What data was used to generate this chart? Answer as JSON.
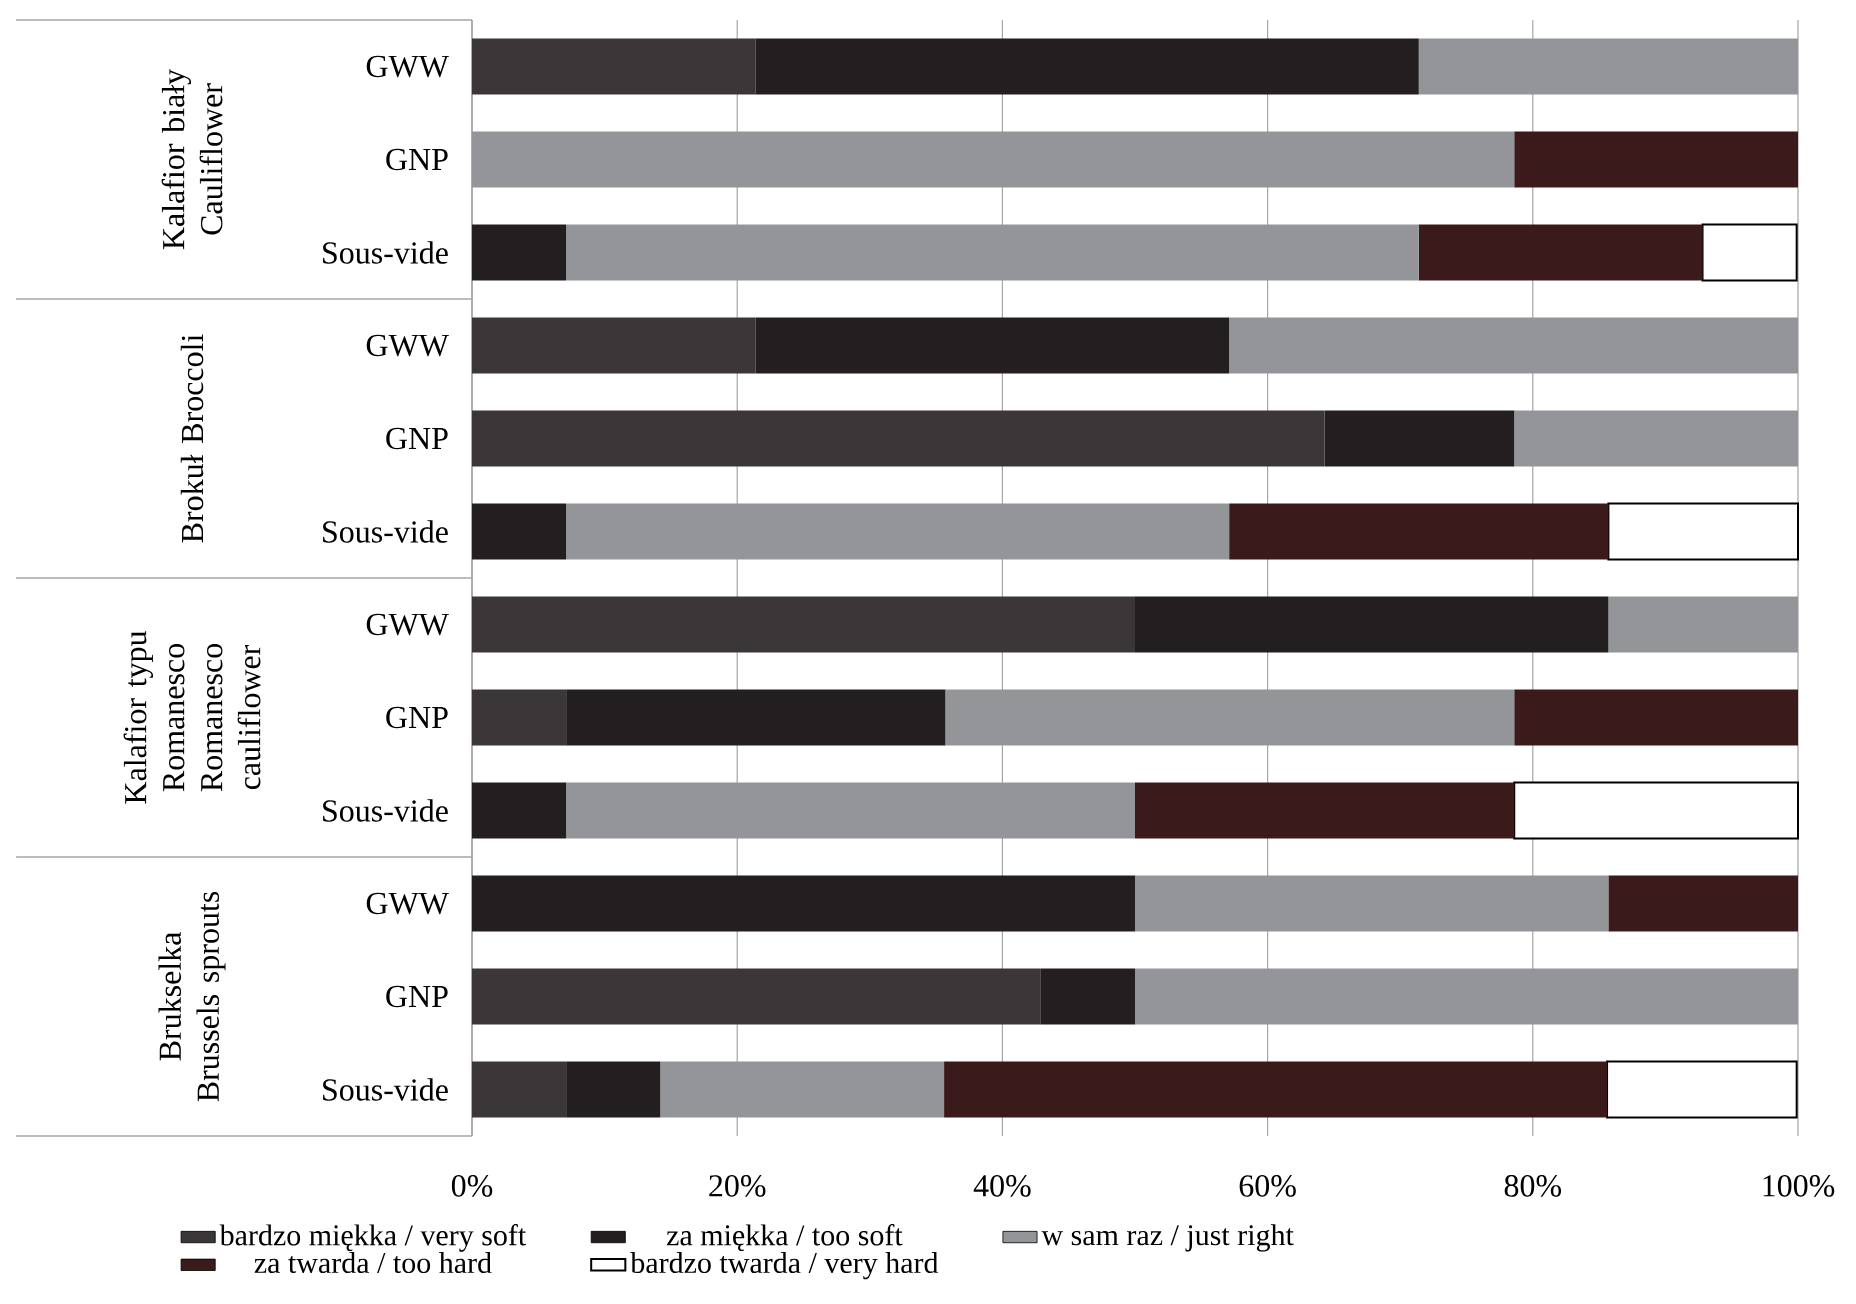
{
  "chart_data": {
    "type": "bar",
    "orientation": "horizontal",
    "stacked": true,
    "categories": [
      "GWW",
      "GNP",
      "Sous-vide",
      "GWW",
      "GNP",
      "Sous-vide",
      "GWW",
      "GNP",
      "Sous-vide",
      "GWW",
      "GNP",
      "Sous-vide"
    ],
    "series": [
      {
        "name": "bardzo miękka / very soft",
        "color": "#3b3738",
        "values": [
          21.4,
          0,
          0,
          21.4,
          64.3,
          0,
          50,
          7.1,
          0,
          0,
          42.9,
          7.1
        ]
      },
      {
        "name": "za miękka / too soft",
        "color": "#231f20",
        "values": [
          50,
          0,
          7.1,
          35.7,
          14.3,
          7.1,
          35.7,
          28.6,
          7.1,
          50,
          7.1,
          7.1
        ]
      },
      {
        "name": "w sam raz / just right",
        "color": "#939598",
        "values": [
          28.6,
          78.6,
          64.3,
          42.9,
          21.4,
          50,
          14.3,
          42.9,
          42.9,
          35.7,
          50,
          21.4
        ]
      },
      {
        "name": "za twarda / too hard",
        "color": "#3a1a1a",
        "values": [
          0,
          21.4,
          21.4,
          0,
          0,
          28.6,
          0,
          21.4,
          28.6,
          14.3,
          0,
          50
        ]
      },
      {
        "name": "bardzo twarda / very hard",
        "color": "#ffffff",
        "values": [
          0,
          0,
          7.1,
          0,
          0,
          14.3,
          0,
          0,
          21.4,
          0,
          0,
          14.3
        ]
      }
    ],
    "xlim": [
      0,
      100
    ],
    "xticks": [
      {
        "value": 0,
        "label": "0%"
      },
      {
        "value": 20,
        "label": "20%"
      },
      {
        "value": 40,
        "label": "40%"
      },
      {
        "value": 60,
        "label": "60%"
      },
      {
        "value": 80,
        "label": "80%"
      },
      {
        "value": 100,
        "label": "100%"
      }
    ],
    "grid": "x",
    "legend": "bottom",
    "annotations": [
      "Kalafior biały Cauliflower",
      "Brokuł Broccoli",
      "Kalafior typu Romanesco Romanesco cauliflower",
      "Brukselka Brussels sprouts"
    ]
  }
}
